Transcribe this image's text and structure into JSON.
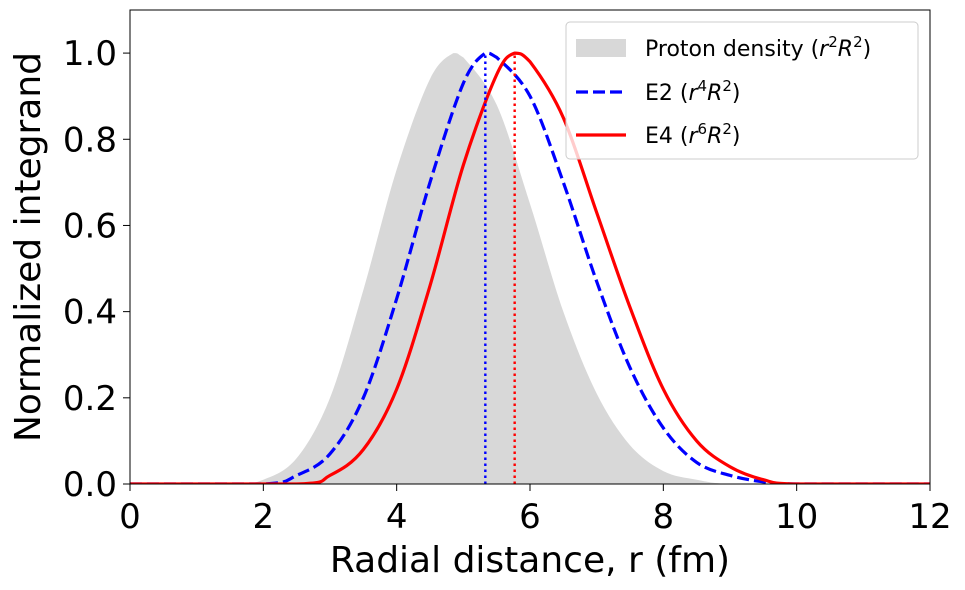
{
  "chart_data": {
    "type": "line",
    "title": "",
    "xlabel": "Radial distance, r (fm)",
    "ylabel": "Normalized integrand",
    "xlim": [
      0,
      12
    ],
    "ylim": [
      0,
      1.1
    ],
    "xticks": [
      0,
      2,
      4,
      6,
      8,
      10,
      12
    ],
    "xtick_labels": [
      "0",
      "2",
      "4",
      "6",
      "8",
      "10",
      "12"
    ],
    "yticks": [
      0.0,
      0.2,
      0.4,
      0.6,
      0.8,
      1.0
    ],
    "ytick_labels": [
      "0.0",
      "0.2",
      "0.4",
      "0.6",
      "0.8",
      "1.0"
    ],
    "grid": false,
    "legend_position": "top-right",
    "series": [
      {
        "name": "Proton density (r²R²)",
        "legend_main": "Proton density (",
        "legend_var": "r",
        "legend_var_exp": "2",
        "legend_var2": "R",
        "legend_var2_exp": "2",
        "legend_close": ")",
        "style": "filled",
        "color": "#d8d8d8",
        "peak_r": 4.85,
        "x": [
          0,
          1.5,
          2.0,
          2.5,
          3.0,
          3.5,
          4.0,
          4.5,
          4.85,
          5.0,
          5.5,
          6.0,
          6.5,
          7.0,
          7.5,
          8.0,
          8.5,
          9.0,
          10.0,
          12.0
        ],
        "values": [
          0,
          0.0,
          0.01,
          0.06,
          0.2,
          0.45,
          0.73,
          0.94,
          1.0,
          0.99,
          0.88,
          0.65,
          0.4,
          0.21,
          0.09,
          0.03,
          0.01,
          0.0,
          0,
          0
        ]
      },
      {
        "name": "E2 (r⁴R²)",
        "legend_main": "E2 (",
        "legend_var": "r",
        "legend_var_exp": "4",
        "legend_var2": "R",
        "legend_var2_exp": "2",
        "legend_close": ")",
        "style": "dashed",
        "color": "#0000ff",
        "peak_r": 5.33,
        "x": [
          0,
          2.0,
          2.5,
          3.0,
          3.5,
          4.0,
          4.5,
          5.0,
          5.33,
          5.5,
          6.0,
          6.5,
          7.0,
          7.5,
          8.0,
          8.5,
          9.0,
          9.5,
          10.0,
          12.0
        ],
        "values": [
          0,
          0.0,
          0.02,
          0.07,
          0.2,
          0.43,
          0.7,
          0.93,
          1.0,
          0.99,
          0.9,
          0.7,
          0.47,
          0.27,
          0.13,
          0.05,
          0.02,
          0.005,
          0,
          0
        ]
      },
      {
        "name": "E4 (r⁶R²)",
        "legend_main": "E4 (",
        "legend_var": "r",
        "legend_var_exp": "6",
        "legend_var2": "R",
        "legend_var2_exp": "2",
        "legend_close": ")",
        "style": "solid",
        "color": "#ff0000",
        "peak_r": 5.77,
        "x": [
          0,
          2.5,
          3.0,
          3.5,
          4.0,
          4.5,
          5.0,
          5.5,
          5.77,
          6.0,
          6.5,
          7.0,
          7.5,
          8.0,
          8.5,
          9.0,
          9.5,
          10.0,
          12.0
        ],
        "values": [
          0,
          0.0,
          0.02,
          0.08,
          0.22,
          0.46,
          0.74,
          0.95,
          1.0,
          0.98,
          0.85,
          0.63,
          0.41,
          0.22,
          0.1,
          0.04,
          0.01,
          0,
          0
        ]
      }
    ],
    "annotations": [
      {
        "type": "vline",
        "x": 5.33,
        "y0": 0,
        "y1": 1.0,
        "color": "#0000ff",
        "style": "dotted"
      },
      {
        "type": "vline",
        "x": 5.77,
        "y0": 0,
        "y1": 1.0,
        "color": "#ff0000",
        "style": "dotted"
      }
    ]
  }
}
